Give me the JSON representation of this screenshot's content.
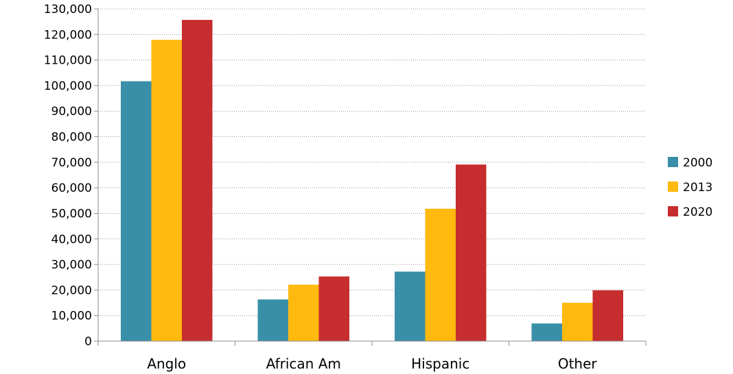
{
  "chart_data": {
    "type": "bar",
    "categories": [
      "Anglo",
      "African Am",
      "Hispanic",
      "Other"
    ],
    "series": [
      {
        "name": "2000",
        "color": "#3a8fa8",
        "values": [
          101700,
          16300,
          27200,
          6900
        ]
      },
      {
        "name": "2013",
        "color": "#ffb90f",
        "values": [
          117900,
          22100,
          51800,
          15000
        ]
      },
      {
        "name": "2020",
        "color": "#c62d2e",
        "values": [
          125700,
          25300,
          69100,
          19900
        ]
      }
    ],
    "ylim": [
      0,
      130000
    ],
    "yticks": [
      0,
      10000,
      20000,
      30000,
      40000,
      50000,
      60000,
      70000,
      80000,
      90000,
      100000,
      110000,
      120000,
      130000
    ],
    "ytick_labels": [
      "0",
      "10,000",
      "20,000",
      "30,000",
      "40,000",
      "50,000",
      "60,000",
      "70,000",
      "80,000",
      "90,000",
      "100,000",
      "110,000",
      "120,000",
      "130,000"
    ],
    "grid": true,
    "legend": "right"
  }
}
